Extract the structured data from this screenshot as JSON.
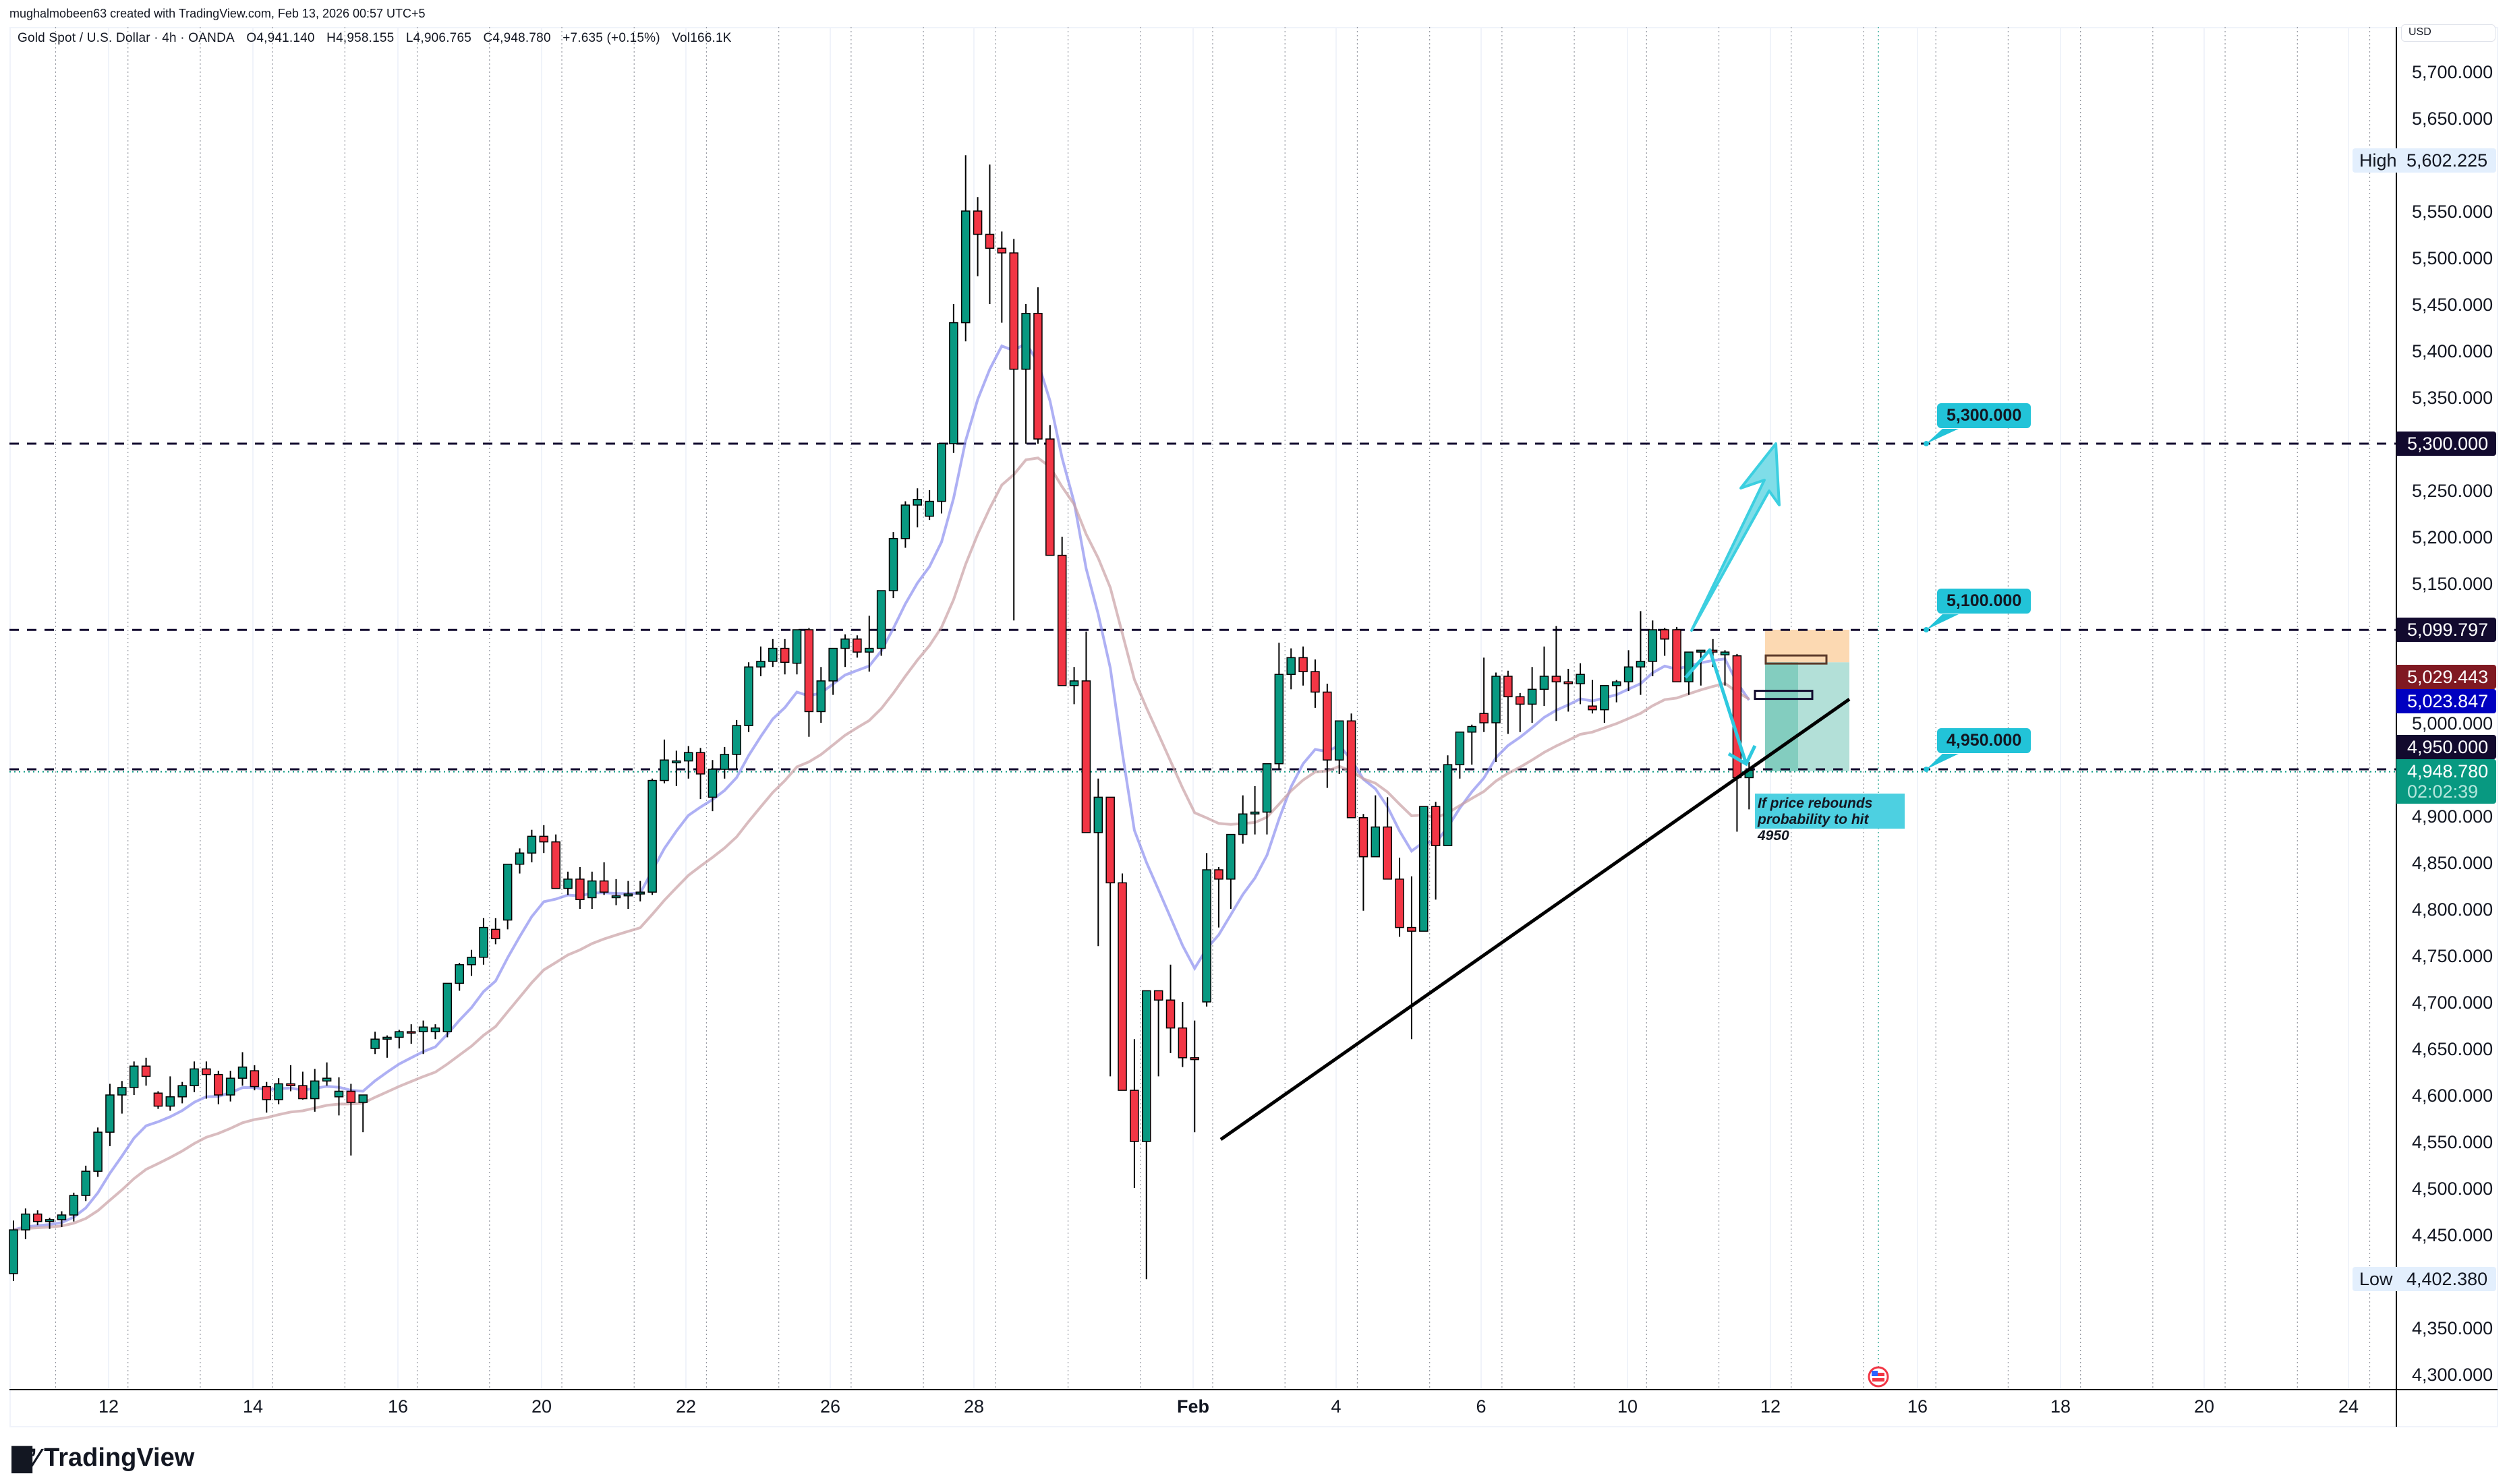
{
  "credit": "mughalmobeen63 created with TradingView.com, Feb 13, 2026 00:57 UTC+5",
  "legend": {
    "symbol": "Gold Spot / U.S. Dollar · 4h · OANDA",
    "open": "O4,941.140",
    "high": "H4,958.155",
    "low": "L4,906.765",
    "close": "C4,948.780",
    "change": "+7.635 (+0.15%)",
    "volume": "Vol166.1K"
  },
  "price_axis": {
    "currency": "USD",
    "ticks": [
      "5,700.000",
      "5,650.000",
      "5,550.000",
      "5,500.000",
      "5,450.000",
      "5,400.000",
      "5,350.000",
      "5,250.000",
      "5,200.000",
      "5,150.000",
      "5,000.000",
      "4,900.000",
      "4,850.000",
      "4,800.000",
      "4,750.000",
      "4,700.000",
      "4,650.000",
      "4,600.000",
      "4,550.000",
      "4,500.000",
      "4,450.000",
      "4,350.000",
      "4,300.000"
    ],
    "high_label": "High",
    "high_value": "5,602.225",
    "low_label": "Low",
    "low_value": "4,402.380",
    "tags": {
      "level_5300": "5,300.000",
      "level_5100": "5,099.797",
      "ema_red": "5,029.443",
      "ema_blue": "5,023.847",
      "level_4950": "4,950.000",
      "last_price": "4,948.780",
      "countdown": "02:02:39"
    }
  },
  "time_axis": {
    "labels": [
      "12",
      "14",
      "16",
      "20",
      "22",
      "26",
      "28",
      "Feb",
      "4",
      "6",
      "10",
      "12",
      "16",
      "18",
      "20",
      "24"
    ]
  },
  "drawings": {
    "callout_5300": "5,300.000",
    "callout_5100": "5,100.000",
    "callout_4950": "4,950.000",
    "note": "If price rebounds probability to hit 4950"
  },
  "colors": {
    "up": "#089981",
    "down": "#F23645",
    "ema_fast": "#8c8ff0",
    "ema_slow": "#c9a0a4",
    "level_line": "#120a2e",
    "callout": "#22c3d8",
    "trendline": "#000000"
  },
  "logo": "TradingView",
  "chart_data": {
    "type": "candlestick",
    "title": "Gold Spot / U.S. Dollar · 4h · OANDA",
    "xlabel": "",
    "ylabel": "USD",
    "ylim": [
      4280,
      5730
    ],
    "grid": true,
    "x_tick_labels": [
      "12",
      "14",
      "16",
      "20",
      "22",
      "26",
      "28",
      "Feb",
      "4",
      "6",
      "10",
      "12",
      "16",
      "18",
      "20",
      "24"
    ],
    "horizontal_levels": [
      5300.0,
      5099.797,
      4950.0
    ],
    "series": [
      {
        "name": "OHLC",
        "ohlc": [
          [
            4408,
            4465,
            4400,
            4455
          ],
          [
            4455,
            4478,
            4445,
            4472
          ],
          [
            4472,
            4476,
            4460,
            4464
          ],
          [
            4464,
            4468,
            4456,
            4466
          ],
          [
            4466,
            4475,
            4458,
            4471
          ],
          [
            4471,
            4495,
            4464,
            4492
          ],
          [
            4492,
            4524,
            4486,
            4518
          ],
          [
            4518,
            4565,
            4512,
            4560
          ],
          [
            4560,
            4612,
            4545,
            4600
          ],
          [
            4600,
            4615,
            4580,
            4608
          ],
          [
            4608,
            4636,
            4600,
            4631
          ],
          [
            4631,
            4640,
            4610,
            4620
          ],
          [
            4602,
            4604,
            4585,
            4588
          ],
          [
            4588,
            4620,
            4583,
            4598
          ],
          [
            4598,
            4614,
            4591,
            4610
          ],
          [
            4610,
            4636,
            4603,
            4628
          ],
          [
            4628,
            4636,
            4596,
            4622
          ],
          [
            4622,
            4626,
            4590,
            4600
          ],
          [
            4600,
            4626,
            4593,
            4618
          ],
          [
            4618,
            4646,
            4610,
            4630
          ],
          [
            4626,
            4632,
            4605,
            4609
          ],
          [
            4609,
            4614,
            4581,
            4595
          ],
          [
            4595,
            4618,
            4590,
            4612
          ],
          [
            4612,
            4632,
            4604,
            4610
          ],
          [
            4610,
            4625,
            4595,
            4596
          ],
          [
            4596,
            4628,
            4582,
            4615
          ],
          [
            4615,
            4635,
            4610,
            4618
          ],
          [
            4598,
            4619,
            4578,
            4604
          ],
          [
            4604,
            4612,
            4535,
            4592
          ],
          [
            4592,
            4600,
            4560,
            4600
          ],
          [
            4650,
            4668,
            4644,
            4660
          ],
          [
            4660,
            4664,
            4640,
            4662
          ],
          [
            4662,
            4670,
            4650,
            4668
          ],
          [
            4668,
            4676,
            4655,
            4667
          ],
          [
            4668,
            4680,
            4644,
            4673
          ],
          [
            4668,
            4676,
            4660,
            4672
          ],
          [
            4668,
            4690,
            4662,
            4720
          ],
          [
            4720,
            4742,
            4712,
            4740
          ],
          [
            4740,
            4756,
            4728,
            4748
          ],
          [
            4748,
            4790,
            4740,
            4780
          ],
          [
            4778,
            4790,
            4762,
            4768
          ],
          [
            4788,
            4834,
            4778,
            4848
          ],
          [
            4848,
            4865,
            4838,
            4860
          ],
          [
            4860,
            4885,
            4850,
            4878
          ],
          [
            4878,
            4890,
            4860,
            4872
          ],
          [
            4872,
            4880,
            4822,
            4822
          ],
          [
            4822,
            4840,
            4815,
            4832
          ],
          [
            4832,
            4845,
            4800,
            4810
          ],
          [
            4812,
            4840,
            4800,
            4830
          ],
          [
            4830,
            4850,
            4815,
            4818
          ],
          [
            4812,
            4832,
            4804,
            4814
          ],
          [
            4814,
            4830,
            4800,
            4816
          ],
          [
            4816,
            4830,
            4808,
            4818
          ],
          [
            4818,
            4940,
            4815,
            4938
          ],
          [
            4938,
            4982,
            4935,
            4960
          ],
          [
            4957,
            4970,
            4932,
            4959
          ],
          [
            4959,
            4975,
            4940,
            4968
          ],
          [
            4968,
            4973,
            4918,
            4945
          ],
          [
            4920,
            4960,
            4905,
            4950
          ],
          [
            4950,
            4974,
            4940,
            4966
          ],
          [
            4966,
            5003,
            4950,
            4997
          ],
          [
            4997,
            5065,
            4990,
            5060
          ],
          [
            5060,
            5082,
            5050,
            5066
          ],
          [
            5066,
            5090,
            5060,
            5080
          ],
          [
            5080,
            5090,
            5052,
            5065
          ],
          [
            5064,
            5098,
            5052,
            5100
          ],
          [
            5100,
            5102,
            4985,
            5012
          ],
          [
            5012,
            5060,
            5000,
            5045
          ],
          [
            5045,
            5075,
            5030,
            5080
          ],
          [
            5080,
            5095,
            5060,
            5090
          ],
          [
            5090,
            5094,
            5070,
            5076
          ],
          [
            5076,
            5115,
            5055,
            5080
          ],
          [
            5080,
            5142,
            5072,
            5142
          ],
          [
            5142,
            5205,
            5134,
            5198
          ],
          [
            5198,
            5238,
            5188,
            5234
          ],
          [
            5234,
            5252,
            5210,
            5240
          ],
          [
            5222,
            5250,
            5218,
            5238
          ],
          [
            5238,
            5290,
            5225,
            5300
          ],
          [
            5300,
            5450,
            5290,
            5430
          ],
          [
            5430,
            5610,
            5410,
            5550
          ],
          [
            5550,
            5565,
            5480,
            5525
          ],
          [
            5525,
            5600,
            5450,
            5510
          ],
          [
            5510,
            5528,
            5430,
            5505
          ],
          [
            5505,
            5520,
            5110,
            5380
          ],
          [
            5380,
            5450,
            5300,
            5440
          ],
          [
            5440,
            5468,
            5300,
            5305
          ],
          [
            5305,
            5320,
            5180,
            5180
          ],
          [
            5180,
            5200,
            5040,
            5040
          ],
          [
            5040,
            5060,
            5020,
            5045
          ],
          [
            5045,
            5098,
            4900,
            4882
          ],
          [
            4882,
            4940,
            4760,
            4920
          ],
          [
            4920,
            4895,
            4620,
            4828
          ],
          [
            4828,
            4838,
            4660,
            4605
          ],
          [
            4605,
            4660,
            4500,
            4550
          ],
          [
            4550,
            4660,
            4402,
            4712
          ],
          [
            4712,
            4705,
            4620,
            4702
          ],
          [
            4702,
            4740,
            4645,
            4672
          ],
          [
            4672,
            4700,
            4630,
            4640
          ],
          [
            4640,
            4680,
            4560,
            4638
          ],
          [
            4700,
            4860,
            4695,
            4842
          ],
          [
            4842,
            4845,
            4780,
            4832
          ],
          [
            4832,
            4880,
            4800,
            4880
          ],
          [
            4880,
            4922,
            4870,
            4902
          ],
          [
            4902,
            4932,
            4880,
            4904
          ],
          [
            4904,
            4950,
            4880,
            4956
          ],
          [
            4956,
            5086,
            4950,
            5052
          ],
          [
            5052,
            5080,
            5036,
            5070
          ],
          [
            5070,
            5082,
            5040,
            5055
          ],
          [
            5055,
            5068,
            5016,
            5033
          ],
          [
            5033,
            5042,
            4930,
            4960
          ],
          [
            4960,
            5002,
            4945,
            5002
          ],
          [
            5002,
            5010,
            4900,
            4898
          ],
          [
            4898,
            4902,
            4798,
            4856
          ],
          [
            4856,
            4922,
            4870,
            4888
          ],
          [
            4888,
            4920,
            4834,
            4832
          ],
          [
            4832,
            4855,
            4770,
            4780
          ],
          [
            4780,
            4835,
            4660,
            4776
          ],
          [
            4776,
            4836,
            4800,
            4910
          ],
          [
            4910,
            4915,
            4810,
            4868
          ],
          [
            4868,
            4965,
            4883,
            4955
          ],
          [
            4955,
            4975,
            4940,
            4990
          ],
          [
            4990,
            4998,
            4955,
            4996
          ],
          [
            5010,
            5070,
            4990,
            5000
          ],
          [
            5000,
            5054,
            4958,
            5050
          ],
          [
            5050,
            5056,
            4988,
            5028
          ],
          [
            5028,
            5032,
            4990,
            5020
          ],
          [
            5020,
            5060,
            5000,
            5036
          ],
          [
            5036,
            5082,
            5018,
            5050
          ],
          [
            5050,
            5104,
            5002,
            5044
          ],
          [
            5044,
            5058,
            5012,
            5042
          ],
          [
            5042,
            5064,
            5020,
            5052
          ],
          [
            5018,
            5046,
            5010,
            5014
          ],
          [
            5014,
            5036,
            5000,
            5040
          ],
          [
            5040,
            5046,
            5022,
            5044
          ],
          [
            5044,
            5078,
            5034,
            5060
          ],
          [
            5060,
            5120,
            5030,
            5066
          ],
          [
            5066,
            5110,
            5050,
            5100
          ],
          [
            5100,
            5102,
            5072,
            5090
          ],
          [
            5100,
            5103,
            5044,
            5044
          ],
          [
            5044,
            5075,
            5030,
            5076
          ],
          [
            5076,
            5078,
            5040,
            5078
          ],
          [
            5078,
            5090,
            5060,
            5076
          ],
          [
            5073,
            5078,
            5040,
            5076
          ],
          [
            5072,
            5074,
            4883,
            4941
          ],
          [
            4941,
            4958,
            4907,
            4949
          ]
        ]
      },
      {
        "name": "EMA fast",
        "color": "#8c8ff0",
        "last": 5023.847
      },
      {
        "name": "EMA slow",
        "color": "#c9a0a4",
        "last": 5029.443
      }
    ],
    "annotations": [
      {
        "type": "hline",
        "price": 5300.0,
        "label": "5,300.000"
      },
      {
        "type": "hline",
        "price": 5100.0,
        "label": "5,100.000"
      },
      {
        "type": "hline",
        "price": 4950.0,
        "label": "4,950.000"
      },
      {
        "type": "trendline",
        "from_price": 4550,
        "to_price": 5010
      },
      {
        "type": "arrow",
        "direction": "up",
        "target": 5300
      },
      {
        "type": "path-arrow",
        "direction": "down"
      },
      {
        "type": "short-position",
        "entry": 5065,
        "stop": 5100,
        "target": 4950
      },
      {
        "type": "text",
        "text": "If price rebounds probability to hit 4950"
      }
    ],
    "last": {
      "open": 4941.14,
      "high": 4958.155,
      "low": 4906.765,
      "close": 4948.78,
      "change": 7.635,
      "change_pct": 0.15,
      "volume": "166.1K"
    }
  }
}
